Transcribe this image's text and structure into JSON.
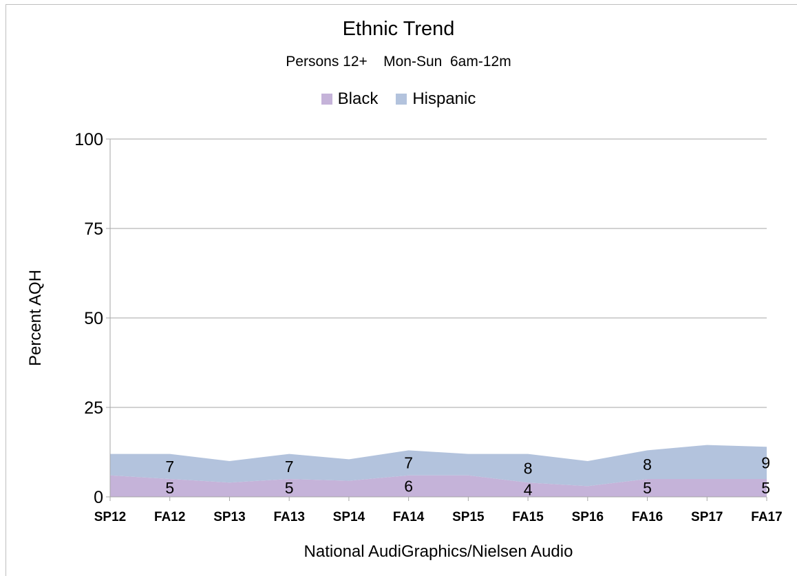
{
  "chart_data": {
    "type": "area",
    "stacked": true,
    "title": "Ethnic Trend",
    "subtitle": "Persons 12+    Mon-Sun  6am-12m",
    "xlabel": "National AudiGraphics/Nielsen Audio",
    "ylabel": "Percent AQH",
    "ylim": [
      0,
      100
    ],
    "yticks": [
      0,
      25,
      50,
      75,
      100
    ],
    "grid": true,
    "legend_position": "top",
    "categories": [
      "SP12",
      "FA12",
      "SP13",
      "FA13",
      "SP14",
      "FA14",
      "SP15",
      "FA15",
      "SP16",
      "FA16",
      "SP17",
      "FA17"
    ],
    "series": [
      {
        "name": "Black",
        "color": "#c5b3d9",
        "values": [
          6,
          5,
          4,
          5,
          4.5,
          6,
          6,
          4,
          3,
          5,
          5,
          5
        ],
        "data_labels": [
          "",
          "5",
          "",
          "5",
          "",
          "6",
          "",
          "4",
          "",
          "5",
          "",
          "5"
        ]
      },
      {
        "name": "Hispanic",
        "color": "#b3c3dd",
        "values": [
          6,
          7,
          6,
          7,
          6,
          7,
          6,
          8,
          7,
          8,
          9.5,
          9
        ],
        "data_labels": [
          "",
          "7",
          "",
          "7",
          "",
          "7",
          "",
          "8",
          "",
          "8",
          "",
          "9"
        ]
      }
    ]
  }
}
